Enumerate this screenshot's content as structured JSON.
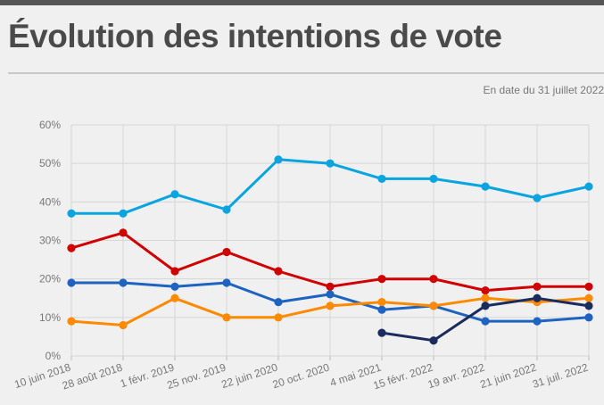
{
  "header": {
    "title": "Évolution des intentions de vote",
    "subtitle": "En date du 31 juillet 2022"
  },
  "chart_data": {
    "type": "line",
    "title": "Évolution des intentions de vote",
    "subtitle": "En date du 31 juillet 2022",
    "xlabel": "",
    "ylabel": "",
    "ylim": [
      0,
      60
    ],
    "yticks": [
      "0%",
      "10%",
      "20%",
      "30%",
      "40%",
      "50%",
      "60%"
    ],
    "grid": true,
    "categories": [
      "10 juin 2018",
      "28 août 2018",
      "1 févr. 2019",
      "25 nov. 2019",
      "22 juin 2020",
      "20 oct. 2020",
      "4 mai 2021",
      "15 févr. 2022",
      "19 avr. 2022",
      "21 juin 2022",
      "31 juil. 2022"
    ],
    "series": [
      {
        "name": "cyan",
        "color": "#0aa5e0",
        "values": [
          37,
          37,
          42,
          38,
          51,
          50,
          46,
          46,
          44,
          41,
          44
        ]
      },
      {
        "name": "red",
        "color": "#d10000",
        "values": [
          28,
          32,
          22,
          27,
          22,
          18,
          20,
          20,
          17,
          18,
          18
        ]
      },
      {
        "name": "blue",
        "color": "#1f63c0",
        "values": [
          19,
          19,
          18,
          19,
          14,
          16,
          12,
          13,
          9,
          9,
          10
        ]
      },
      {
        "name": "orange",
        "color": "#ff8a00",
        "values": [
          9,
          8,
          15,
          10,
          10,
          13,
          14,
          13,
          15,
          14,
          15
        ]
      },
      {
        "name": "navy",
        "color": "#1a2b5e",
        "values": [
          null,
          null,
          null,
          null,
          null,
          null,
          6,
          4,
          13,
          15,
          13
        ]
      }
    ]
  }
}
